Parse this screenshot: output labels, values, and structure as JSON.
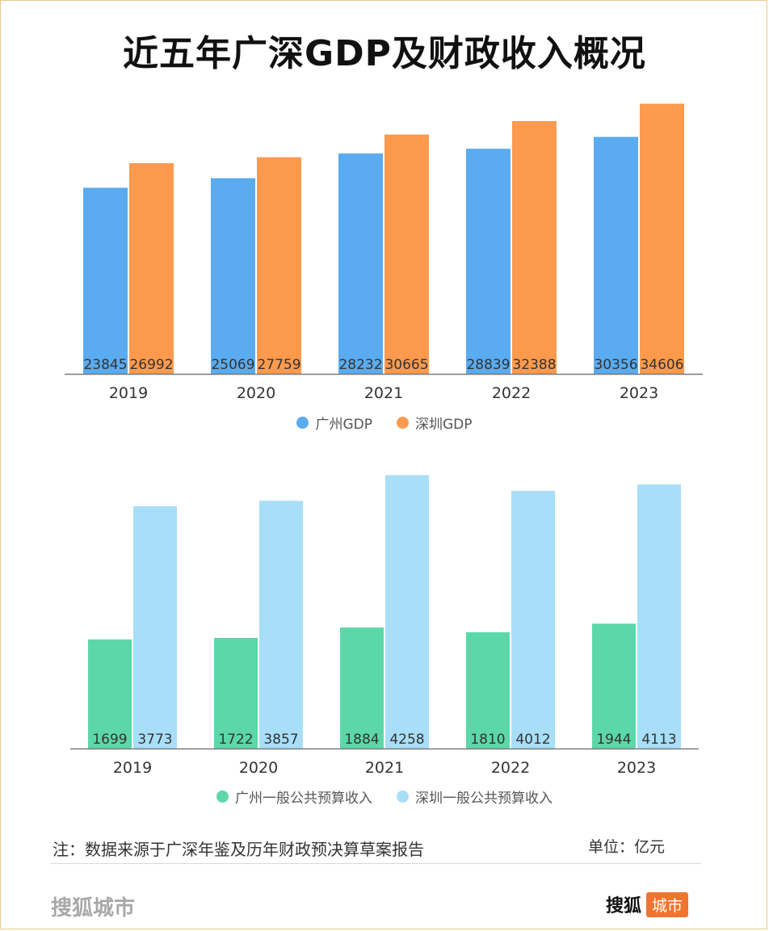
{
  "title": "近五年广深GDP及财政收入概况",
  "chart_data": [
    {
      "type": "bar",
      "categories": [
        "2019",
        "2020",
        "2021",
        "2022",
        "2023"
      ],
      "series": [
        {
          "name": "广州GDP",
          "values": [
            23845,
            25069,
            28232,
            28839,
            30356
          ],
          "color": "#5aabef"
        },
        {
          "name": "深圳GDP",
          "values": [
            26992,
            27759,
            30665,
            32388,
            34606
          ],
          "color": "#fd9a4e"
        }
      ],
      "ylim": [
        0,
        36000
      ],
      "grid": false,
      "legend": "bottom"
    },
    {
      "type": "bar",
      "categories": [
        "2019",
        "2020",
        "2021",
        "2022",
        "2023"
      ],
      "series": [
        {
          "name": "广州一般公共预算收入",
          "values": [
            1699,
            1722,
            1884,
            1810,
            1944
          ],
          "color": "#5cd7a9"
        },
        {
          "name": "深圳一般公共预算收入",
          "values": [
            3773,
            3857,
            4258,
            4012,
            4113
          ],
          "color": "#a8def8"
        }
      ],
      "ylim": [
        0,
        4300
      ],
      "grid": false,
      "legend": "bottom"
    }
  ],
  "note": "注：数据来源于广深年鉴及历年财政预决算草案报告",
  "unit": "单位：亿元",
  "footer_brand": "搜狐城市",
  "logo": {
    "text": "搜狐",
    "badge": "城市"
  }
}
